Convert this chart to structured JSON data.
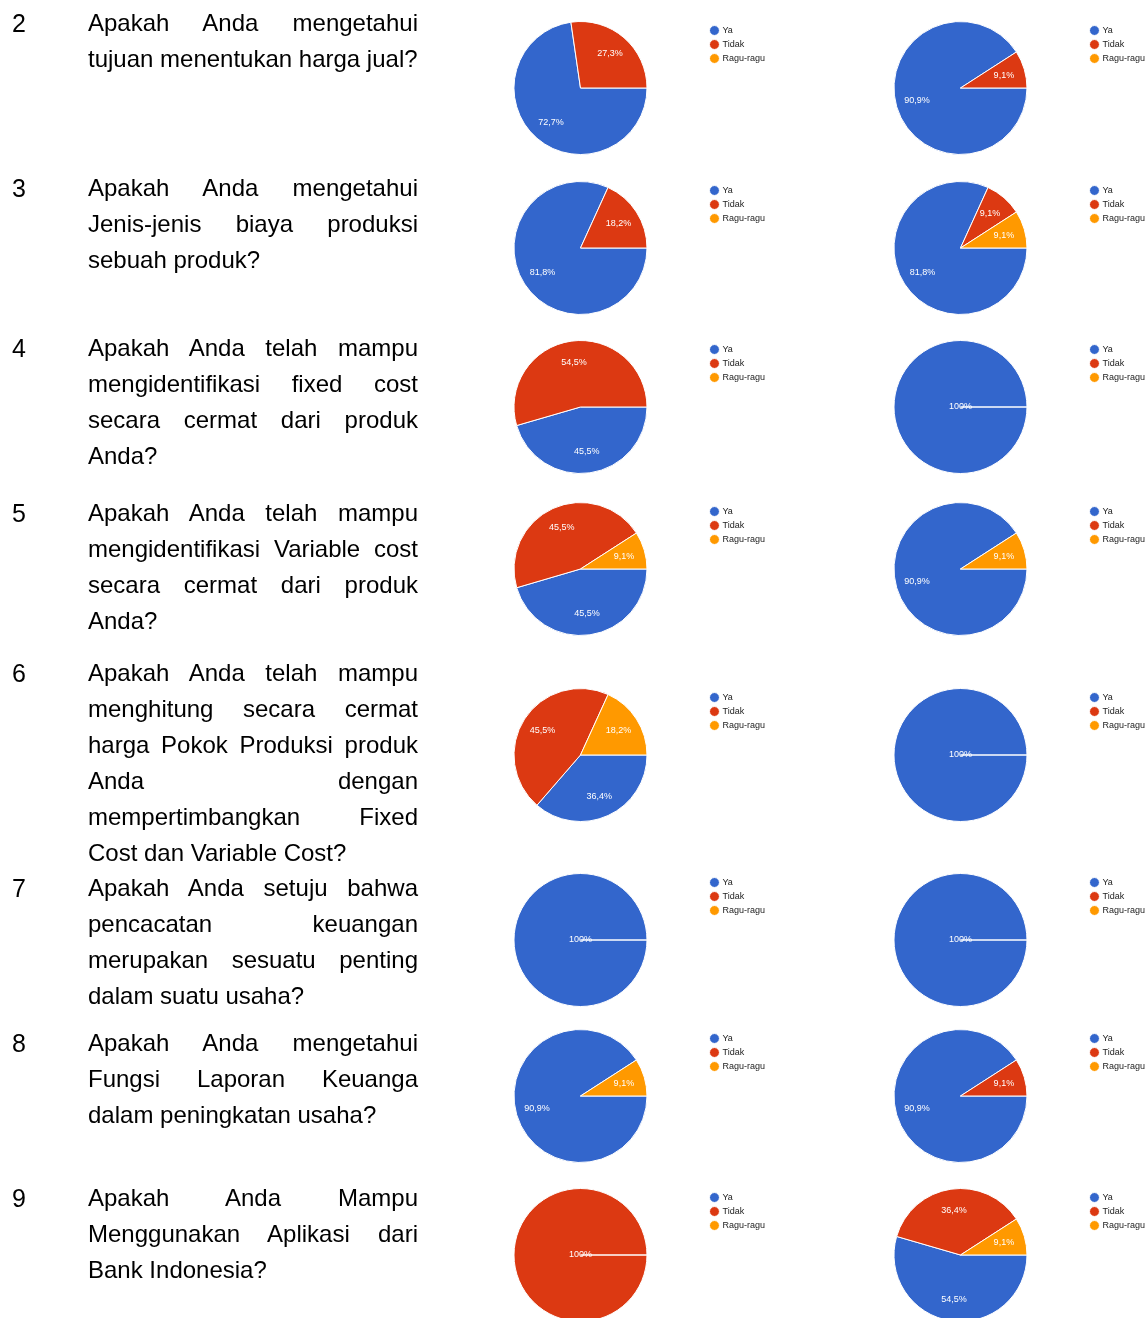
{
  "chart_data": [
    {
      "type": "pie",
      "title": "Apakah Anda mengetahui tujuan menentukan harga jual?",
      "annotations": [
        "2"
      ],
      "categories": [
        "Ya",
        "Tidak",
        "Ragu-ragu"
      ],
      "values": [
        72.7,
        27.3,
        0
      ],
      "colors": [
        "#3366cc",
        "#dc3912",
        "#ff9900"
      ],
      "value_labels": [
        "72,7%",
        "27,3%",
        null
      ],
      "legend": "top right"
    },
    {
      "type": "pie",
      "categories": [
        "Ya",
        "Tidak",
        "Ragu-ragu"
      ],
      "values": [
        90.9,
        9.1,
        0
      ],
      "colors": [
        "#3366cc",
        "#dc3912",
        "#ff9900"
      ],
      "value_labels": [
        "90,9%",
        "9,1%",
        null
      ],
      "legend": "top right"
    },
    {
      "type": "pie",
      "title": "Apakah Anda mengetahui Jenis-jenis biaya produksi sebuah produk?",
      "annotations": [
        "3"
      ],
      "categories": [
        "Ya",
        "Tidak",
        "Ragu-ragu"
      ],
      "values": [
        81.8,
        18.2,
        0
      ],
      "colors": [
        "#3366cc",
        "#dc3912",
        "#ff9900"
      ],
      "value_labels": [
        "81,8%",
        "18,2%",
        null
      ],
      "legend": "top right"
    },
    {
      "type": "pie",
      "categories": [
        "Ya",
        "Tidak",
        "Ragu-ragu"
      ],
      "values": [
        81.8,
        9.1,
        9.1
      ],
      "colors": [
        "#3366cc",
        "#dc3912",
        "#ff9900"
      ],
      "value_labels": [
        "81,8%",
        "9,1%",
        "9,1%"
      ],
      "legend": "top right"
    },
    {
      "type": "pie",
      "title": "Apakah Anda telah mampu mengidentifikasi fixed cost secara cermat dari produk Anda?",
      "annotations": [
        "4"
      ],
      "categories": [
        "Ya",
        "Tidak",
        "Ragu-ragu"
      ],
      "values": [
        45.5,
        54.5,
        0
      ],
      "colors": [
        "#3366cc",
        "#dc3912",
        "#ff9900"
      ],
      "value_labels": [
        "45,5%",
        "54,5%",
        null
      ],
      "legend": "top right"
    },
    {
      "type": "pie",
      "categories": [
        "Ya",
        "Tidak",
        "Ragu-ragu"
      ],
      "values": [
        100,
        0,
        0
      ],
      "colors": [
        "#3366cc",
        "#dc3912",
        "#ff9900"
      ],
      "value_labels": [
        "100%",
        null,
        null
      ],
      "legend": "top right"
    },
    {
      "type": "pie",
      "title": "Apakah Anda telah mampu mengidentifikasi Variable cost secara cermat dari produk Anda?",
      "annotations": [
        "5"
      ],
      "categories": [
        "Ya",
        "Tidak",
        "Ragu-ragu"
      ],
      "values": [
        45.5,
        45.5,
        9.1
      ],
      "colors": [
        "#3366cc",
        "#dc3912",
        "#ff9900"
      ],
      "value_labels": [
        "45,5%",
        "45,5%",
        "9,1%"
      ],
      "legend": "top right"
    },
    {
      "type": "pie",
      "categories": [
        "Ya",
        "Tidak",
        "Ragu-ragu"
      ],
      "values": [
        90.9,
        0,
        9.1
      ],
      "colors": [
        "#3366cc",
        "#dc3912",
        "#ff9900"
      ],
      "value_labels": [
        "90,9%",
        null,
        "9,1%"
      ],
      "legend": "top right"
    },
    {
      "type": "pie",
      "title": "Apakah Anda telah mampu menghitung secara cermat harga Pokok Produksi produk Anda dengan mempertimbangkan Fixed Cost dan Variable Cost?",
      "annotations": [
        "6"
      ],
      "categories": [
        "Ya",
        "Tidak",
        "Ragu-ragu"
      ],
      "values": [
        36.4,
        45.5,
        18.2
      ],
      "colors": [
        "#3366cc",
        "#dc3912",
        "#ff9900"
      ],
      "value_labels": [
        "36,4%",
        "45,5%",
        "18,2%"
      ],
      "legend": "top right"
    },
    {
      "type": "pie",
      "categories": [
        "Ya",
        "Tidak",
        "Ragu-ragu"
      ],
      "values": [
        100,
        0,
        0
      ],
      "colors": [
        "#3366cc",
        "#dc3912",
        "#ff9900"
      ],
      "value_labels": [
        "100%",
        null,
        null
      ],
      "legend": "top right"
    },
    {
      "type": "pie",
      "title": "Apakah Anda setuju bahwa pencacatan keuangan merupakan sesuatu penting dalam suatu usaha?",
      "annotations": [
        "7"
      ],
      "categories": [
        "Ya",
        "Tidak",
        "Ragu-ragu"
      ],
      "values": [
        100,
        0,
        0
      ],
      "colors": [
        "#3366cc",
        "#dc3912",
        "#ff9900"
      ],
      "value_labels": [
        "100%",
        null,
        null
      ],
      "legend": "top right"
    },
    {
      "type": "pie",
      "categories": [
        "Ya",
        "Tidak",
        "Ragu-ragu"
      ],
      "values": [
        100,
        0,
        0
      ],
      "colors": [
        "#3366cc",
        "#dc3912",
        "#ff9900"
      ],
      "value_labels": [
        "100%",
        null,
        null
      ],
      "legend": "top right"
    },
    {
      "type": "pie",
      "title": "Apakah Anda mengetahui Fungsi Laporan Keuanga dalam peningkatan usaha?",
      "annotations": [
        "8"
      ],
      "categories": [
        "Ya",
        "Tidak",
        "Ragu-ragu"
      ],
      "values": [
        90.9,
        0,
        9.1
      ],
      "colors": [
        "#3366cc",
        "#dc3912",
        "#ff9900"
      ],
      "value_labels": [
        "90,9%",
        null,
        "9,1%"
      ],
      "legend": "top right"
    },
    {
      "type": "pie",
      "categories": [
        "Ya",
        "Tidak",
        "Ragu-ragu"
      ],
      "values": [
        90.9,
        9.1,
        0
      ],
      "colors": [
        "#3366cc",
        "#dc3912",
        "#ff9900"
      ],
      "value_labels": [
        "90,9%",
        "9,1%",
        null
      ],
      "legend": "top right"
    },
    {
      "type": "pie",
      "title": "Apakah Anda Mampu Menggunakan Aplikasi dari Bank Indonesia?",
      "annotations": [
        "9"
      ],
      "categories": [
        "Ya",
        "Tidak",
        "Ragu-ragu"
      ],
      "values": [
        0,
        100,
        0
      ],
      "colors": [
        "#3366cc",
        "#dc3912",
        "#ff9900"
      ],
      "value_labels": [
        null,
        "100%",
        null
      ],
      "legend": "top right"
    },
    {
      "type": "pie",
      "categories": [
        "Ya",
        "Tidak",
        "Ragu-ragu"
      ],
      "values": [
        54.5,
        36.4,
        9.1
      ],
      "colors": [
        "#3366cc",
        "#dc3912",
        "#ff9900"
      ],
      "value_labels": [
        "54,5%",
        "36,4%",
        "9,1%"
      ],
      "legend": "top right"
    }
  ]
}
